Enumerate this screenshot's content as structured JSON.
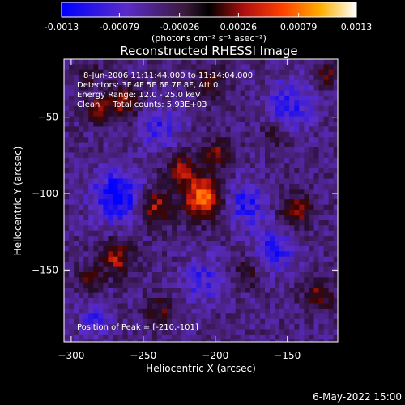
{
  "colorbar": {
    "tick_labels": [
      "-0.0013",
      "-0.00079",
      "-0.00026",
      "0.00026",
      "0.00079",
      "0.0013"
    ],
    "range": [
      -0.0013,
      0.0013
    ],
    "unit_label": "(photons cm⁻² s⁻¹ asec⁻²)"
  },
  "chart_data": {
    "type": "heatmap",
    "title": "Reconstructed RHESSI Image",
    "xlabel": "Heliocentric X (arcsec)",
    "ylabel": "Heliocentric Y (arcsec)",
    "xlim": [
      -305,
      -115
    ],
    "ylim": [
      -197,
      -12
    ],
    "x_ticks": [
      -300,
      -250,
      -200,
      -150
    ],
    "y_ticks": [
      -150,
      -100,
      -50
    ],
    "x_tick_labels": [
      "−300",
      "−250",
      "−200",
      "−150"
    ],
    "y_tick_labels": [
      "−150",
      "−100",
      "−50"
    ],
    "info_lines": [
      "8-Jun-2006 11:11:44.000 to 11:14:04.000",
      "Detectors: 3F 4F 5F 6F 7F 8F, Att 0",
      "Energy Range: 12.0 - 25.0 keV",
      "Clean     Total counts: 5.93E+03"
    ],
    "peak_label": "Position of Peak = [-210,-101]",
    "peak": [
      -210,
      -101
    ],
    "colormap": "blue-purple-red-yellow-white",
    "sources": [
      {
        "x": -210,
        "y": -101,
        "amp": 1.0,
        "sigma": 9
      },
      {
        "x": -225,
        "y": -83,
        "amp": 0.55,
        "sigma": 8
      },
      {
        "x": -243,
        "y": -107,
        "amp": 0.6,
        "sigma": 8
      },
      {
        "x": -200,
        "y": -72,
        "amp": 0.45,
        "sigma": 7
      },
      {
        "x": -265,
        "y": -38,
        "amp": 0.6,
        "sigma": 7
      },
      {
        "x": -283,
        "y": -43,
        "amp": 0.5,
        "sigma": 6
      },
      {
        "x": -205,
        "y": -25,
        "amp": 0.45,
        "sigma": 7
      },
      {
        "x": -270,
        "y": -140,
        "amp": 0.6,
        "sigma": 8
      },
      {
        "x": -290,
        "y": -155,
        "amp": 0.45,
        "sigma": 6
      },
      {
        "x": -145,
        "y": -110,
        "amp": 0.55,
        "sigma": 8
      },
      {
        "x": -130,
        "y": -165,
        "amp": 0.5,
        "sigma": 7
      },
      {
        "x": -160,
        "y": -60,
        "amp": 0.35,
        "sigma": 6
      },
      {
        "x": -240,
        "y": -175,
        "amp": 0.4,
        "sigma": 7
      },
      {
        "x": -180,
        "y": -150,
        "amp": 0.35,
        "sigma": 6
      },
      {
        "x": -125,
        "y": -20,
        "amp": 0.45,
        "sigma": 6
      },
      {
        "x": -290,
        "y": -20,
        "amp": 0.35,
        "sigma": 6
      }
    ],
    "negative_regions": [
      {
        "x": -270,
        "y": -100,
        "amp": -0.7,
        "sigma": 12
      },
      {
        "x": -180,
        "y": -105,
        "amp": -0.5,
        "sigma": 10
      },
      {
        "x": -160,
        "y": -135,
        "amp": -0.5,
        "sigma": 10
      },
      {
        "x": -240,
        "y": -55,
        "amp": -0.4,
        "sigma": 10
      },
      {
        "x": -150,
        "y": -40,
        "amp": -0.45,
        "sigma": 12
      },
      {
        "x": -210,
        "y": -155,
        "amp": -0.4,
        "sigma": 10
      },
      {
        "x": -285,
        "y": -180,
        "amp": -0.35,
        "sigma": 8
      }
    ]
  },
  "footer": {
    "date": "6-May-2022 15:00"
  }
}
